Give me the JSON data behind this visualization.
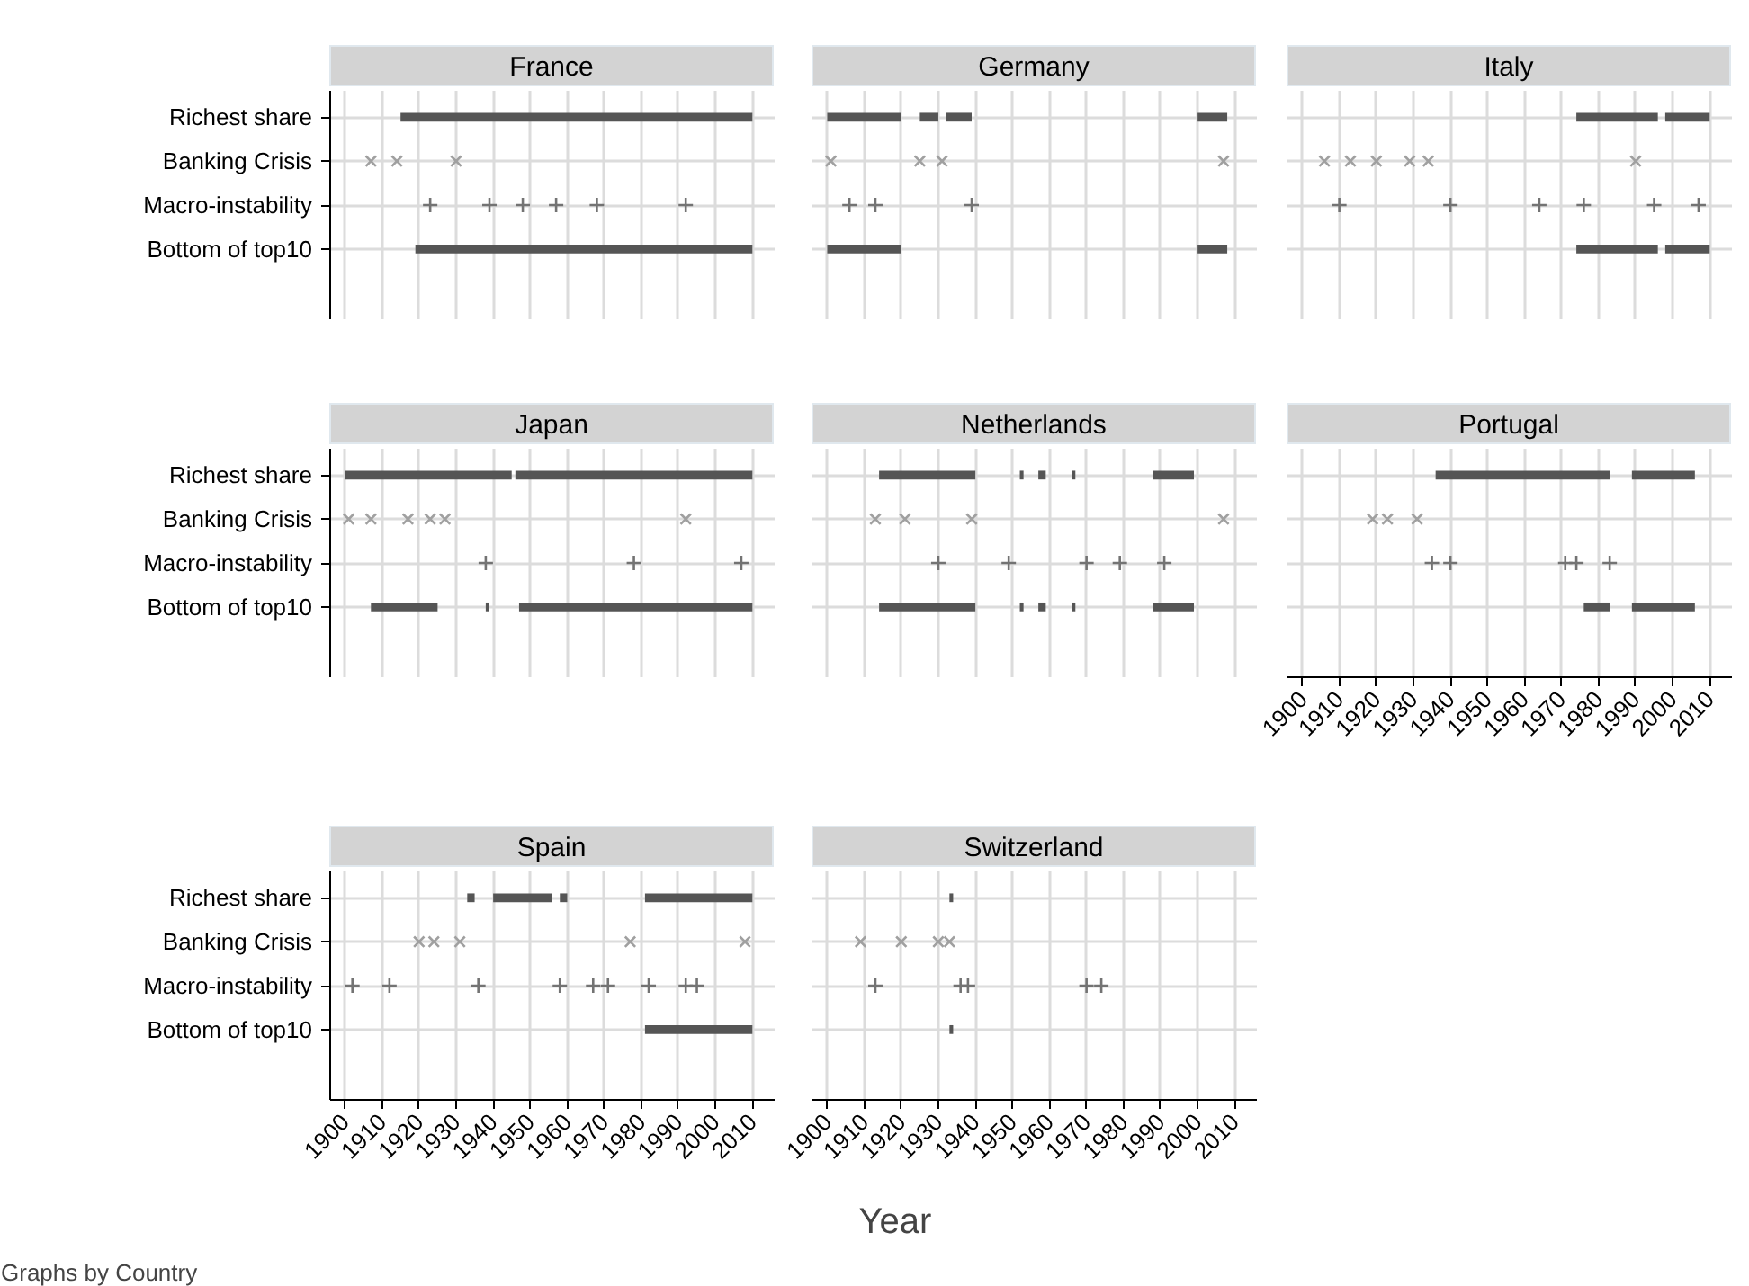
{
  "chart_data": [
    {
      "type": "bar",
      "title": "France",
      "orientation": "horizontal",
      "categories": [
        "Richest share",
        "Banking Crisis",
        "Macro-instability",
        "Bottom of top10"
      ],
      "xlim": [
        1896,
        2016
      ],
      "xticks": [
        1900,
        1910,
        1920,
        1930,
        1940,
        1950,
        1960,
        1970,
        1980,
        1990,
        2000,
        2010
      ],
      "grid": true,
      "tick_labels": "y",
      "series": [
        {
          "color": "#555555",
          "x": [
            "Richest share",
            "Bottom of top10"
          ],
          "base": [
            1915,
            1919
          ],
          "values": [
            95,
            91
          ]
        },
        {
          "type": "scatter",
          "marker": "x",
          "color": "#a0a0a0",
          "x": [
            "Banking Crisis",
            "Banking Crisis",
            "Banking Crisis"
          ],
          "values": [
            1907,
            1914,
            1930
          ]
        },
        {
          "type": "scatter",
          "marker": "cross",
          "color": "#737373",
          "x": [
            "Macro-instability",
            "Macro-instability",
            "Macro-instability",
            "Macro-instability",
            "Macro-instability",
            "Macro-instability"
          ],
          "values": [
            1923,
            1939,
            1948,
            1957,
            1968,
            1992
          ]
        }
      ]
    },
    {
      "type": "bar",
      "title": "Germany",
      "orientation": "horizontal",
      "categories": [
        "Richest share",
        "Banking Crisis",
        "Macro-instability",
        "Bottom of top10"
      ],
      "xlim": [
        1896,
        2016
      ],
      "xticks": [
        1900,
        1910,
        1920,
        1930,
        1940,
        1950,
        1960,
        1970,
        1980,
        1990,
        2000,
        2010
      ],
      "grid": true,
      "tick_labels": false,
      "series": [
        {
          "color": "#555555",
          "x": [
            "Richest share",
            "Richest share",
            "Richest share",
            "Richest share",
            "Bottom of top10",
            "Bottom of top10"
          ],
          "base": [
            1900,
            1925,
            1932,
            2000,
            1900,
            2000
          ],
          "values": [
            20,
            5,
            7,
            8,
            20,
            8
          ]
        },
        {
          "type": "scatter",
          "marker": "x",
          "color": "#a0a0a0",
          "x": [
            "Banking Crisis",
            "Banking Crisis",
            "Banking Crisis",
            "Banking Crisis"
          ],
          "values": [
            1901,
            1925,
            1931,
            2007
          ]
        },
        {
          "type": "scatter",
          "marker": "cross",
          "color": "#737373",
          "x": [
            "Macro-instability",
            "Macro-instability",
            "Macro-instability"
          ],
          "values": [
            1906,
            1913,
            1939
          ]
        }
      ]
    },
    {
      "type": "bar",
      "title": "Italy",
      "orientation": "horizontal",
      "categories": [
        "Richest share",
        "Banking Crisis",
        "Macro-instability",
        "Bottom of top10"
      ],
      "xlim": [
        1896,
        2016
      ],
      "xticks": [
        1900,
        1910,
        1920,
        1930,
        1940,
        1950,
        1960,
        1970,
        1980,
        1990,
        2000,
        2010
      ],
      "grid": true,
      "tick_labels": false,
      "series": [
        {
          "color": "#555555",
          "x": [
            "Richest share",
            "Richest share",
            "Bottom of top10",
            "Bottom of top10"
          ],
          "base": [
            1974,
            1998,
            1974,
            1998
          ],
          "values": [
            22,
            12,
            22,
            12
          ]
        },
        {
          "type": "scatter",
          "marker": "x",
          "color": "#a0a0a0",
          "x": [
            "Banking Crisis",
            "Banking Crisis",
            "Banking Crisis",
            "Banking Crisis",
            "Banking Crisis",
            "Banking Crisis"
          ],
          "values": [
            1906,
            1913,
            1920,
            1929,
            1934,
            1990
          ]
        },
        {
          "type": "scatter",
          "marker": "cross",
          "color": "#737373",
          "x": [
            "Macro-instability",
            "Macro-instability",
            "Macro-instability",
            "Macro-instability",
            "Macro-instability",
            "Macro-instability"
          ],
          "values": [
            1910,
            1940,
            1964,
            1976,
            1995,
            2007
          ]
        }
      ]
    },
    {
      "type": "bar",
      "title": "Japan",
      "orientation": "horizontal",
      "categories": [
        "Richest share",
        "Banking Crisis",
        "Macro-instability",
        "Bottom of top10"
      ],
      "xlim": [
        1896,
        2016
      ],
      "xticks": [
        1900,
        1910,
        1920,
        1930,
        1940,
        1950,
        1960,
        1970,
        1980,
        1990,
        2000,
        2010
      ],
      "grid": true,
      "tick_labels": "y",
      "series": [
        {
          "color": "#555555",
          "x": [
            "Richest share",
            "Richest share",
            "Bottom of top10",
            "Bottom of top10",
            "Bottom of top10"
          ],
          "base": [
            1900,
            1946,
            1907,
            1938,
            1947
          ],
          "values": [
            45,
            64,
            18,
            1,
            63
          ]
        },
        {
          "type": "scatter",
          "marker": "x",
          "color": "#a0a0a0",
          "x": [
            "Banking Crisis",
            "Banking Crisis",
            "Banking Crisis",
            "Banking Crisis",
            "Banking Crisis",
            "Banking Crisis"
          ],
          "values": [
            1901,
            1907,
            1917,
            1923,
            1927,
            1992
          ]
        },
        {
          "type": "scatter",
          "marker": "cross",
          "color": "#737373",
          "x": [
            "Macro-instability",
            "Macro-instability",
            "Macro-instability"
          ],
          "values": [
            1938,
            1978,
            2007
          ]
        }
      ]
    },
    {
      "type": "bar",
      "title": "Netherlands",
      "orientation": "horizontal",
      "categories": [
        "Richest share",
        "Banking Crisis",
        "Macro-instability",
        "Bottom of top10"
      ],
      "xlim": [
        1896,
        2016
      ],
      "xticks": [
        1900,
        1910,
        1920,
        1930,
        1940,
        1950,
        1960,
        1970,
        1980,
        1990,
        2000,
        2010
      ],
      "grid": true,
      "tick_labels": false,
      "series": [
        {
          "color": "#555555",
          "x": [
            "Richest share",
            "Richest share",
            "Richest share",
            "Richest share",
            "Richest share",
            "Bottom of top10",
            "Bottom of top10",
            "Bottom of top10",
            "Bottom of top10",
            "Bottom of top10"
          ],
          "base": [
            1914,
            1952,
            1957,
            1966,
            1988,
            1914,
            1952,
            1957,
            1966,
            1988
          ],
          "values": [
            26,
            1,
            2,
            1,
            11,
            26,
            1,
            2,
            1,
            11
          ]
        },
        {
          "type": "scatter",
          "marker": "x",
          "color": "#a0a0a0",
          "x": [
            "Banking Crisis",
            "Banking Crisis",
            "Banking Crisis",
            "Banking Crisis"
          ],
          "values": [
            1913,
            1921,
            1939,
            2007
          ]
        },
        {
          "type": "scatter",
          "marker": "cross",
          "color": "#737373",
          "x": [
            "Macro-instability",
            "Macro-instability",
            "Macro-instability",
            "Macro-instability",
            "Macro-instability"
          ],
          "values": [
            1930,
            1949,
            1970,
            1979,
            1991
          ]
        }
      ]
    },
    {
      "type": "bar",
      "title": "Portugal",
      "orientation": "horizontal",
      "categories": [
        "Richest share",
        "Banking Crisis",
        "Macro-instability",
        "Bottom of top10"
      ],
      "xlim": [
        1896,
        2016
      ],
      "xticks": [
        1900,
        1910,
        1920,
        1930,
        1940,
        1950,
        1960,
        1970,
        1980,
        1990,
        2000,
        2010
      ],
      "grid": true,
      "tick_labels": "x",
      "series": [
        {
          "color": "#555555",
          "x": [
            "Richest share",
            "Richest share",
            "Bottom of top10",
            "Bottom of top10"
          ],
          "base": [
            1936,
            1989,
            1976,
            1989
          ],
          "values": [
            47,
            17,
            7,
            17
          ]
        },
        {
          "type": "scatter",
          "marker": "x",
          "color": "#a0a0a0",
          "x": [
            "Banking Crisis",
            "Banking Crisis",
            "Banking Crisis"
          ],
          "values": [
            1919,
            1923,
            1931
          ]
        },
        {
          "type": "scatter",
          "marker": "cross",
          "color": "#737373",
          "x": [
            "Macro-instability",
            "Macro-instability",
            "Macro-instability",
            "Macro-instability",
            "Macro-instability"
          ],
          "values": [
            1935,
            1940,
            1971,
            1974,
            1983
          ]
        }
      ]
    },
    {
      "type": "bar",
      "title": "Spain",
      "orientation": "horizontal",
      "categories": [
        "Richest share",
        "Banking Crisis",
        "Macro-instability",
        "Bottom of top10"
      ],
      "xlim": [
        1896,
        2016
      ],
      "xticks": [
        1900,
        1910,
        1920,
        1930,
        1940,
        1950,
        1960,
        1970,
        1980,
        1990,
        2000,
        2010
      ],
      "grid": true,
      "series": [
        {
          "color": "#555555",
          "x": [
            "Richest share",
            "Richest share",
            "Richest share",
            "Richest share",
            "Bottom of top10"
          ],
          "base": [
            1933,
            1940,
            1958,
            1981,
            1981
          ],
          "values": [
            2,
            16,
            2,
            29,
            29
          ]
        },
        {
          "type": "scatter",
          "marker": "x",
          "color": "#a0a0a0",
          "x": [
            "Banking Crisis",
            "Banking Crisis",
            "Banking Crisis",
            "Banking Crisis",
            "Banking Crisis"
          ],
          "values": [
            1920,
            1924,
            1931,
            1977,
            2008
          ]
        },
        {
          "type": "scatter",
          "marker": "cross",
          "color": "#737373",
          "x": [
            "Macro-instability",
            "Macro-instability",
            "Macro-instability",
            "Macro-instability",
            "Macro-instability",
            "Macro-instability",
            "Macro-instability",
            "Macro-instability",
            "Macro-instability"
          ],
          "values": [
            1902,
            1912,
            1936,
            1958,
            1967,
            1971,
            1982,
            1992,
            1995
          ]
        }
      ]
    },
    {
      "type": "bar",
      "title": "Switzerland",
      "orientation": "horizontal",
      "categories": [
        "Richest share",
        "Banking Crisis",
        "Macro-instability",
        "Bottom of top10"
      ],
      "xlim": [
        1896,
        2016
      ],
      "xticks": [
        1900,
        1910,
        1920,
        1930,
        1940,
        1950,
        1960,
        1970,
        1980,
        1990,
        2000,
        2010
      ],
      "grid": true,
      "tick_labels": "x",
      "xlabel": "Year",
      "annotations": [
        "Graphs by Country"
      ],
      "series": [
        {
          "color": "#555555",
          "x": [
            "Richest share",
            "Bottom of top10"
          ],
          "base": [
            1933,
            1933
          ],
          "values": [
            1,
            1
          ]
        },
        {
          "type": "scatter",
          "marker": "x",
          "color": "#a0a0a0",
          "x": [
            "Banking Crisis",
            "Banking Crisis",
            "Banking Crisis",
            "Banking Crisis"
          ],
          "values": [
            1909,
            1920,
            1930,
            1933
          ]
        },
        {
          "type": "scatter",
          "marker": "cross",
          "color": "#737373",
          "x": [
            "Macro-instability",
            "Macro-instability",
            "Macro-instability",
            "Macro-instability",
            "Macro-instability"
          ],
          "values": [
            1913,
            1936,
            1938,
            1970,
            1974
          ]
        }
      ]
    }
  ]
}
